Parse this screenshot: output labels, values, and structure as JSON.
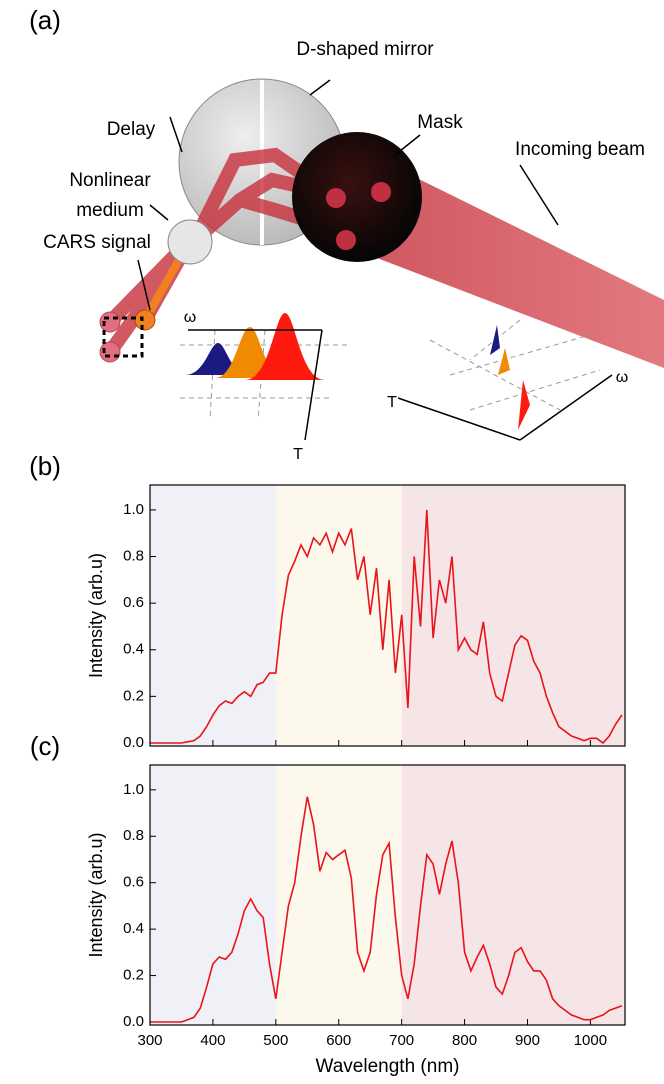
{
  "diagram": {
    "panel_label": "(a)",
    "labels": {
      "mirror": "D-shaped mirror",
      "delay": "Delay",
      "mask": "Mask",
      "beam": "Incoming beam",
      "medium_1": "Nonlinear",
      "medium_2": "medium",
      "signal": "CARS signal",
      "omega_left": "ω",
      "t_left": "T",
      "omega_right": "ω",
      "t_right": "T"
    }
  },
  "chart_data": [
    {
      "type": "line",
      "panel_label": "(b)",
      "ylabel": "Intensity (arb.u)",
      "x": [
        300,
        310,
        320,
        330,
        340,
        350,
        360,
        370,
        380,
        390,
        400,
        410,
        420,
        430,
        440,
        450,
        460,
        470,
        480,
        490,
        500,
        510,
        520,
        530,
        540,
        550,
        560,
        570,
        580,
        590,
        600,
        610,
        620,
        630,
        640,
        650,
        660,
        670,
        680,
        690,
        700,
        710,
        720,
        730,
        740,
        750,
        760,
        770,
        780,
        790,
        800,
        810,
        820,
        830,
        840,
        850,
        860,
        870,
        880,
        890,
        900,
        910,
        920,
        930,
        940,
        950,
        960,
        970,
        980,
        990,
        1000,
        1010,
        1020,
        1030,
        1040,
        1050
      ],
      "series": [
        {
          "color": "#e8141b",
          "values": [
            0,
            0,
            0,
            0,
            0,
            0,
            0.005,
            0.01,
            0.03,
            0.07,
            0.12,
            0.16,
            0.18,
            0.17,
            0.2,
            0.22,
            0.2,
            0.25,
            0.26,
            0.3,
            0.3,
            0.55,
            0.72,
            0.78,
            0.85,
            0.8,
            0.88,
            0.85,
            0.9,
            0.82,
            0.9,
            0.85,
            0.92,
            0.7,
            0.8,
            0.55,
            0.75,
            0.4,
            0.7,
            0.3,
            0.55,
            0.15,
            0.8,
            0.5,
            1.0,
            0.45,
            0.7,
            0.6,
            0.8,
            0.4,
            0.45,
            0.4,
            0.38,
            0.52,
            0.3,
            0.2,
            0.18,
            0.3,
            0.42,
            0.46,
            0.44,
            0.35,
            0.3,
            0.2,
            0.13,
            0.07,
            0.05,
            0.03,
            0.02,
            0.01,
            0.02,
            0.02,
            0,
            0.03,
            0.08,
            0.12
          ]
        }
      ],
      "bands": [
        {
          "range": [
            300,
            500
          ],
          "color": "#f0f1f6"
        },
        {
          "range": [
            500,
            700
          ],
          "color": "#fdf8ec"
        },
        {
          "range": [
            700,
            1055
          ],
          "color": "#f6e5e6"
        }
      ],
      "xlim": [
        300,
        1055
      ],
      "ylim": [
        -0.013,
        1.107
      ],
      "xticks": [
        300,
        400,
        500,
        600,
        700,
        800,
        900,
        1000
      ],
      "xtick_labels": false,
      "yticks": [
        {
          "value": 0,
          "label": "0.0"
        },
        0.2,
        0.4,
        0.6,
        0.8,
        {
          "value": 1,
          "label": "1.0"
        }
      ]
    },
    {
      "type": "line",
      "panel_label": "(c)",
      "ylabel": "Intensity (arb.u)",
      "xlabel": "Wavelength (nm)",
      "x": [
        300,
        310,
        320,
        330,
        340,
        350,
        360,
        370,
        380,
        390,
        400,
        410,
        420,
        430,
        440,
        450,
        460,
        470,
        480,
        490,
        500,
        510,
        520,
        530,
        540,
        550,
        560,
        570,
        580,
        590,
        600,
        610,
        620,
        630,
        640,
        650,
        660,
        670,
        680,
        690,
        700,
        710,
        720,
        730,
        740,
        750,
        760,
        770,
        780,
        790,
        800,
        810,
        820,
        830,
        840,
        850,
        860,
        870,
        880,
        890,
        900,
        910,
        920,
        930,
        940,
        950,
        960,
        970,
        980,
        990,
        1000,
        1010,
        1020,
        1030,
        1040,
        1050
      ],
      "series": [
        {
          "color": "#e8141b",
          "values": [
            0,
            0,
            0,
            0,
            0,
            0,
            0.01,
            0.02,
            0.06,
            0.15,
            0.25,
            0.28,
            0.27,
            0.3,
            0.38,
            0.48,
            0.53,
            0.48,
            0.45,
            0.25,
            0.1,
            0.3,
            0.5,
            0.6,
            0.8,
            0.97,
            0.85,
            0.65,
            0.73,
            0.7,
            0.72,
            0.74,
            0.62,
            0.3,
            0.22,
            0.3,
            0.55,
            0.72,
            0.77,
            0.45,
            0.2,
            0.1,
            0.25,
            0.5,
            0.72,
            0.68,
            0.55,
            0.68,
            0.78,
            0.6,
            0.3,
            0.22,
            0.28,
            0.33,
            0.25,
            0.15,
            0.12,
            0.2,
            0.3,
            0.32,
            0.26,
            0.22,
            0.22,
            0.18,
            0.1,
            0.07,
            0.05,
            0.03,
            0.02,
            0.01,
            0.01,
            0.02,
            0.03,
            0.05,
            0.06,
            0.07
          ]
        }
      ],
      "bands": [
        {
          "range": [
            300,
            500
          ],
          "color": "#f0f1f6"
        },
        {
          "range": [
            500,
            700
          ],
          "color": "#fdf8ec"
        },
        {
          "range": [
            700,
            1055
          ],
          "color": "#f6e5e6"
        }
      ],
      "xlim": [
        300,
        1055
      ],
      "ylim": [
        -0.013,
        1.107
      ],
      "xticks": [
        300,
        400,
        500,
        600,
        700,
        800,
        900,
        1000
      ],
      "xtick_labels": true,
      "yticks": [
        {
          "value": 0,
          "label": "0.0"
        },
        0.2,
        0.4,
        0.6,
        0.8,
        {
          "value": 1,
          "label": "1.0"
        }
      ]
    }
  ]
}
